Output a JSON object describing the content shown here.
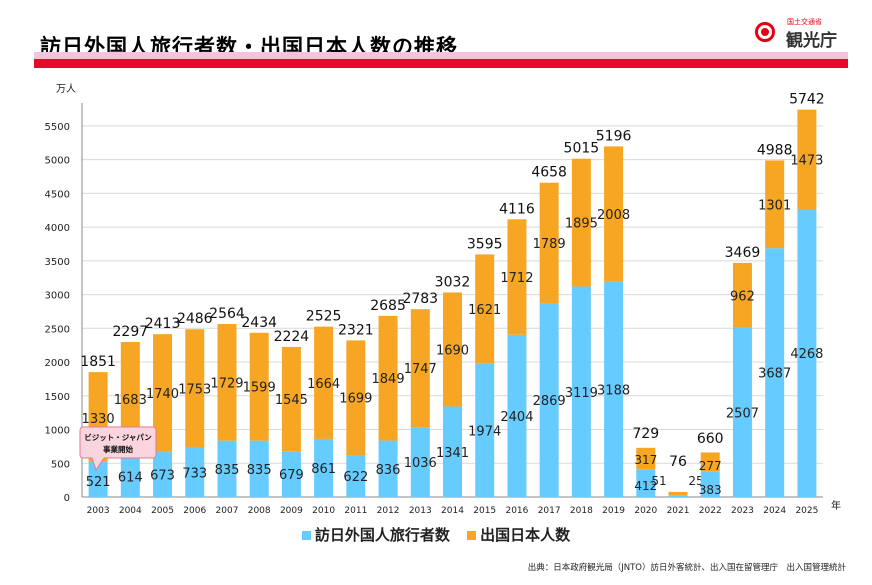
{
  "title": "訪日外国人旅行者数・出国日本人数の推移",
  "logo": {
    "small_text": "国土交通省",
    "name": "観光庁"
  },
  "source": "出典：日本政府観光局（JNTO）訪日外客統計、出入国在留管理庁　出入国管理統計",
  "colors": {
    "inbound": "#66ccff",
    "outbound": "#f6a623",
    "grid": "#d9d9d9",
    "brand_red": "#e5092a"
  },
  "chart_data": {
    "type": "bar",
    "stacked": true,
    "categories": [
      "2003",
      "2004",
      "2005",
      "2006",
      "2007",
      "2008",
      "2009",
      "2010",
      "2011",
      "2012",
      "2013",
      "2014",
      "2015",
      "2016",
      "2017",
      "2018",
      "2019",
      "2020",
      "2021",
      "2022",
      "2023",
      "2024",
      "2025"
    ],
    "series": [
      {
        "name": "訪日外国人旅行者数",
        "color": "#66ccff",
        "values": [
          521,
          614,
          673,
          733,
          835,
          835,
          679,
          861,
          622,
          836,
          1036,
          1341,
          1974,
          2404,
          2869,
          3119,
          3188,
          412,
          25,
          383,
          2507,
          3687,
          4268
        ]
      },
      {
        "name": "出国日本人数",
        "color": "#f6a623",
        "values": [
          1330,
          1683,
          1740,
          1753,
          1729,
          1599,
          1545,
          1664,
          1699,
          1849,
          1747,
          1690,
          1621,
          1712,
          1789,
          1895,
          2008,
          317,
          51,
          277,
          962,
          1301,
          1473
        ]
      }
    ],
    "totals": [
      1851,
      2297,
      2413,
      2486,
      2564,
      2434,
      2224,
      2525,
      2321,
      2685,
      2783,
      3032,
      3595,
      4116,
      4658,
      5015,
      5196,
      729,
      76,
      660,
      3469,
      4988,
      5742
    ],
    "yticks": [
      0,
      500,
      1000,
      1500,
      2000,
      2500,
      3000,
      3500,
      4000,
      4500,
      5000,
      5500
    ],
    "ylim": [
      0,
      5800
    ],
    "yunit": "万人",
    "xunit": "年",
    "grid": true,
    "legend_position": "bottom",
    "annotation": {
      "line1": "ビジット・ジャパン",
      "line2": "事業開始"
    }
  }
}
